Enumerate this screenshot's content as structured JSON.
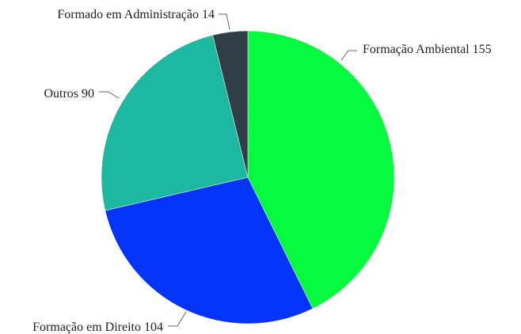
{
  "chart_data": {
    "type": "pie",
    "title": "",
    "slices": [
      {
        "label": "Formação Ambiental",
        "value": 155,
        "color": "#04FA3E"
      },
      {
        "label": "Formação em Direito",
        "value": 104,
        "color": "#0433FA"
      },
      {
        "label": "Outros",
        "value": 90,
        "color": "#1DB8A2"
      },
      {
        "label": "Formado em Administração",
        "value": 14,
        "color": "#2F3F44"
      }
    ],
    "start": "top",
    "direction": "clockwise",
    "legend": "none"
  }
}
